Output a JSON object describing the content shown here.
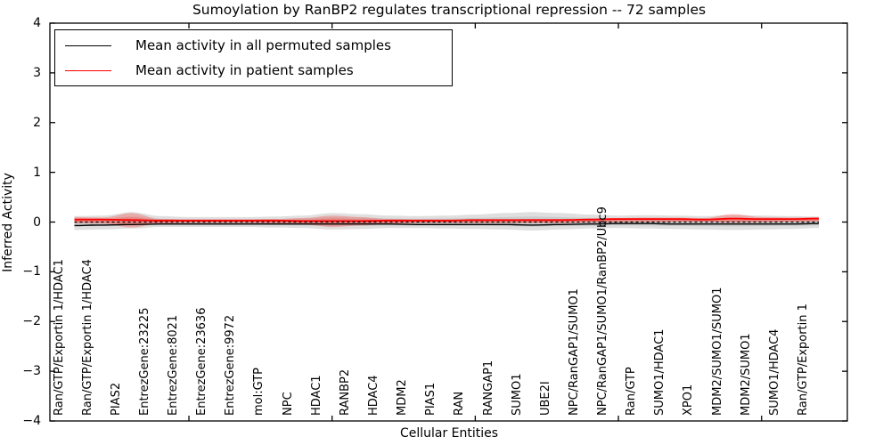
{
  "title": "Sumoylation by RanBP2 regulates transcriptional repression -- 72 samples",
  "legend": {
    "entries": [
      {
        "label": "Mean activity in all permuted samples",
        "color": "#000000"
      },
      {
        "label": "Mean activity in patient samples",
        "color": "#ff0000"
      }
    ]
  },
  "colors": {
    "permuted_line": "#000000",
    "patient_line": "#ff0000",
    "permuted_band": "#aaaaaa",
    "patient_band": "#f26560",
    "zero_line": "#000000",
    "axis": "#000000",
    "background": "#ffffff"
  },
  "chart_data": {
    "type": "area",
    "title": "Sumoylation by RanBP2 regulates transcriptional repression -- 72 samples",
    "xlabel": "Cellular Entities",
    "ylabel": "Inferred Activity",
    "ylim": [
      -4,
      4
    ],
    "yticks": [
      4,
      3,
      2,
      1,
      0,
      -1,
      -2,
      -3,
      -4
    ],
    "grid": false,
    "legend_position": "upper left",
    "categories": [
      "Ran/GTP/Exportin 1/HDAC1",
      "Ran/GTP/Exportin 1/HDAC4",
      "PIAS2",
      "EntrezGene:23225",
      "EntrezGene:8021",
      "EntrezGene:23636",
      "EntrezGene:9972",
      "mol:GTP",
      "NPC",
      "HDAC1",
      "RANBP2",
      "HDAC4",
      "MDM2",
      "PIAS1",
      "RAN",
      "RANGAP1",
      "SUMO1",
      "UBE2I",
      "NPC/RanGAP1/SUMO1",
      "NPC/RanGAP1/SUMO1/RanBP2/Ubc9",
      "Ran/GTP",
      "SUMO1/HDAC1",
      "XPO1",
      "MDM2/SUMO1/SUMO1",
      "MDM2/SUMO1",
      "SUMO1/HDAC4",
      "Ran/GTP/Exportin 1"
    ],
    "x_major_tick_indices": [
      4,
      9,
      14,
      19,
      24
    ],
    "zero_line": 0,
    "series": [
      {
        "name": "Mean activity in all permuted samples",
        "color": "#000000",
        "values": [
          -0.07,
          -0.06,
          -0.05,
          -0.04,
          -0.04,
          -0.04,
          -0.04,
          -0.04,
          -0.04,
          -0.04,
          -0.04,
          -0.04,
          -0.05,
          -0.05,
          -0.05,
          -0.05,
          -0.06,
          -0.05,
          -0.04,
          -0.03,
          -0.03,
          -0.04,
          -0.04,
          -0.04,
          -0.04,
          -0.04,
          -0.03
        ]
      },
      {
        "name": "Mean activity in patient samples",
        "color": "#ff0000",
        "values": [
          0.05,
          0.05,
          0.04,
          0.03,
          0.03,
          0.03,
          0.03,
          0.03,
          0.02,
          0.02,
          0.02,
          0.03,
          0.03,
          0.03,
          0.04,
          0.04,
          0.04,
          0.04,
          0.05,
          0.06,
          0.06,
          0.06,
          0.05,
          0.07,
          0.06,
          0.06,
          0.07
        ]
      }
    ],
    "bands": [
      {
        "name": "permuted-samples-envelope",
        "color": "#aaaaaa",
        "upper": [
          0.12,
          0.13,
          0.2,
          0.12,
          0.1,
          0.1,
          0.1,
          0.11,
          0.13,
          0.18,
          0.16,
          0.13,
          0.12,
          0.13,
          0.15,
          0.18,
          0.2,
          0.18,
          0.15,
          0.13,
          0.14,
          0.13,
          0.12,
          0.14,
          0.13,
          0.12,
          0.11
        ],
        "lower": [
          -0.16,
          -0.15,
          -0.13,
          -0.1,
          -0.1,
          -0.1,
          -0.1,
          -0.11,
          -0.12,
          -0.15,
          -0.14,
          -0.12,
          -0.12,
          -0.13,
          -0.14,
          -0.15,
          -0.17,
          -0.15,
          -0.13,
          -0.12,
          -0.13,
          -0.14,
          -0.15,
          -0.16,
          -0.15,
          -0.14,
          -0.12
        ]
      },
      {
        "name": "patient-samples-envelope",
        "color": "#f26560",
        "upper": [
          0.1,
          0.09,
          0.18,
          0.06,
          0.05,
          0.05,
          0.05,
          0.06,
          0.08,
          0.13,
          0.1,
          0.06,
          0.05,
          0.05,
          0.05,
          0.05,
          0.06,
          0.06,
          0.07,
          0.08,
          0.09,
          0.09,
          0.08,
          0.16,
          0.1,
          0.09,
          0.1
        ],
        "lower": [
          -0.02,
          -0.03,
          -0.11,
          -0.03,
          -0.02,
          -0.02,
          -0.02,
          -0.03,
          -0.05,
          -0.1,
          -0.07,
          -0.04,
          -0.02,
          -0.02,
          -0.02,
          -0.02,
          -0.02,
          -0.02,
          -0.01,
          0.0,
          0.01,
          0.01,
          0.01,
          -0.01,
          0.0,
          0.01,
          0.02
        ]
      }
    ]
  }
}
